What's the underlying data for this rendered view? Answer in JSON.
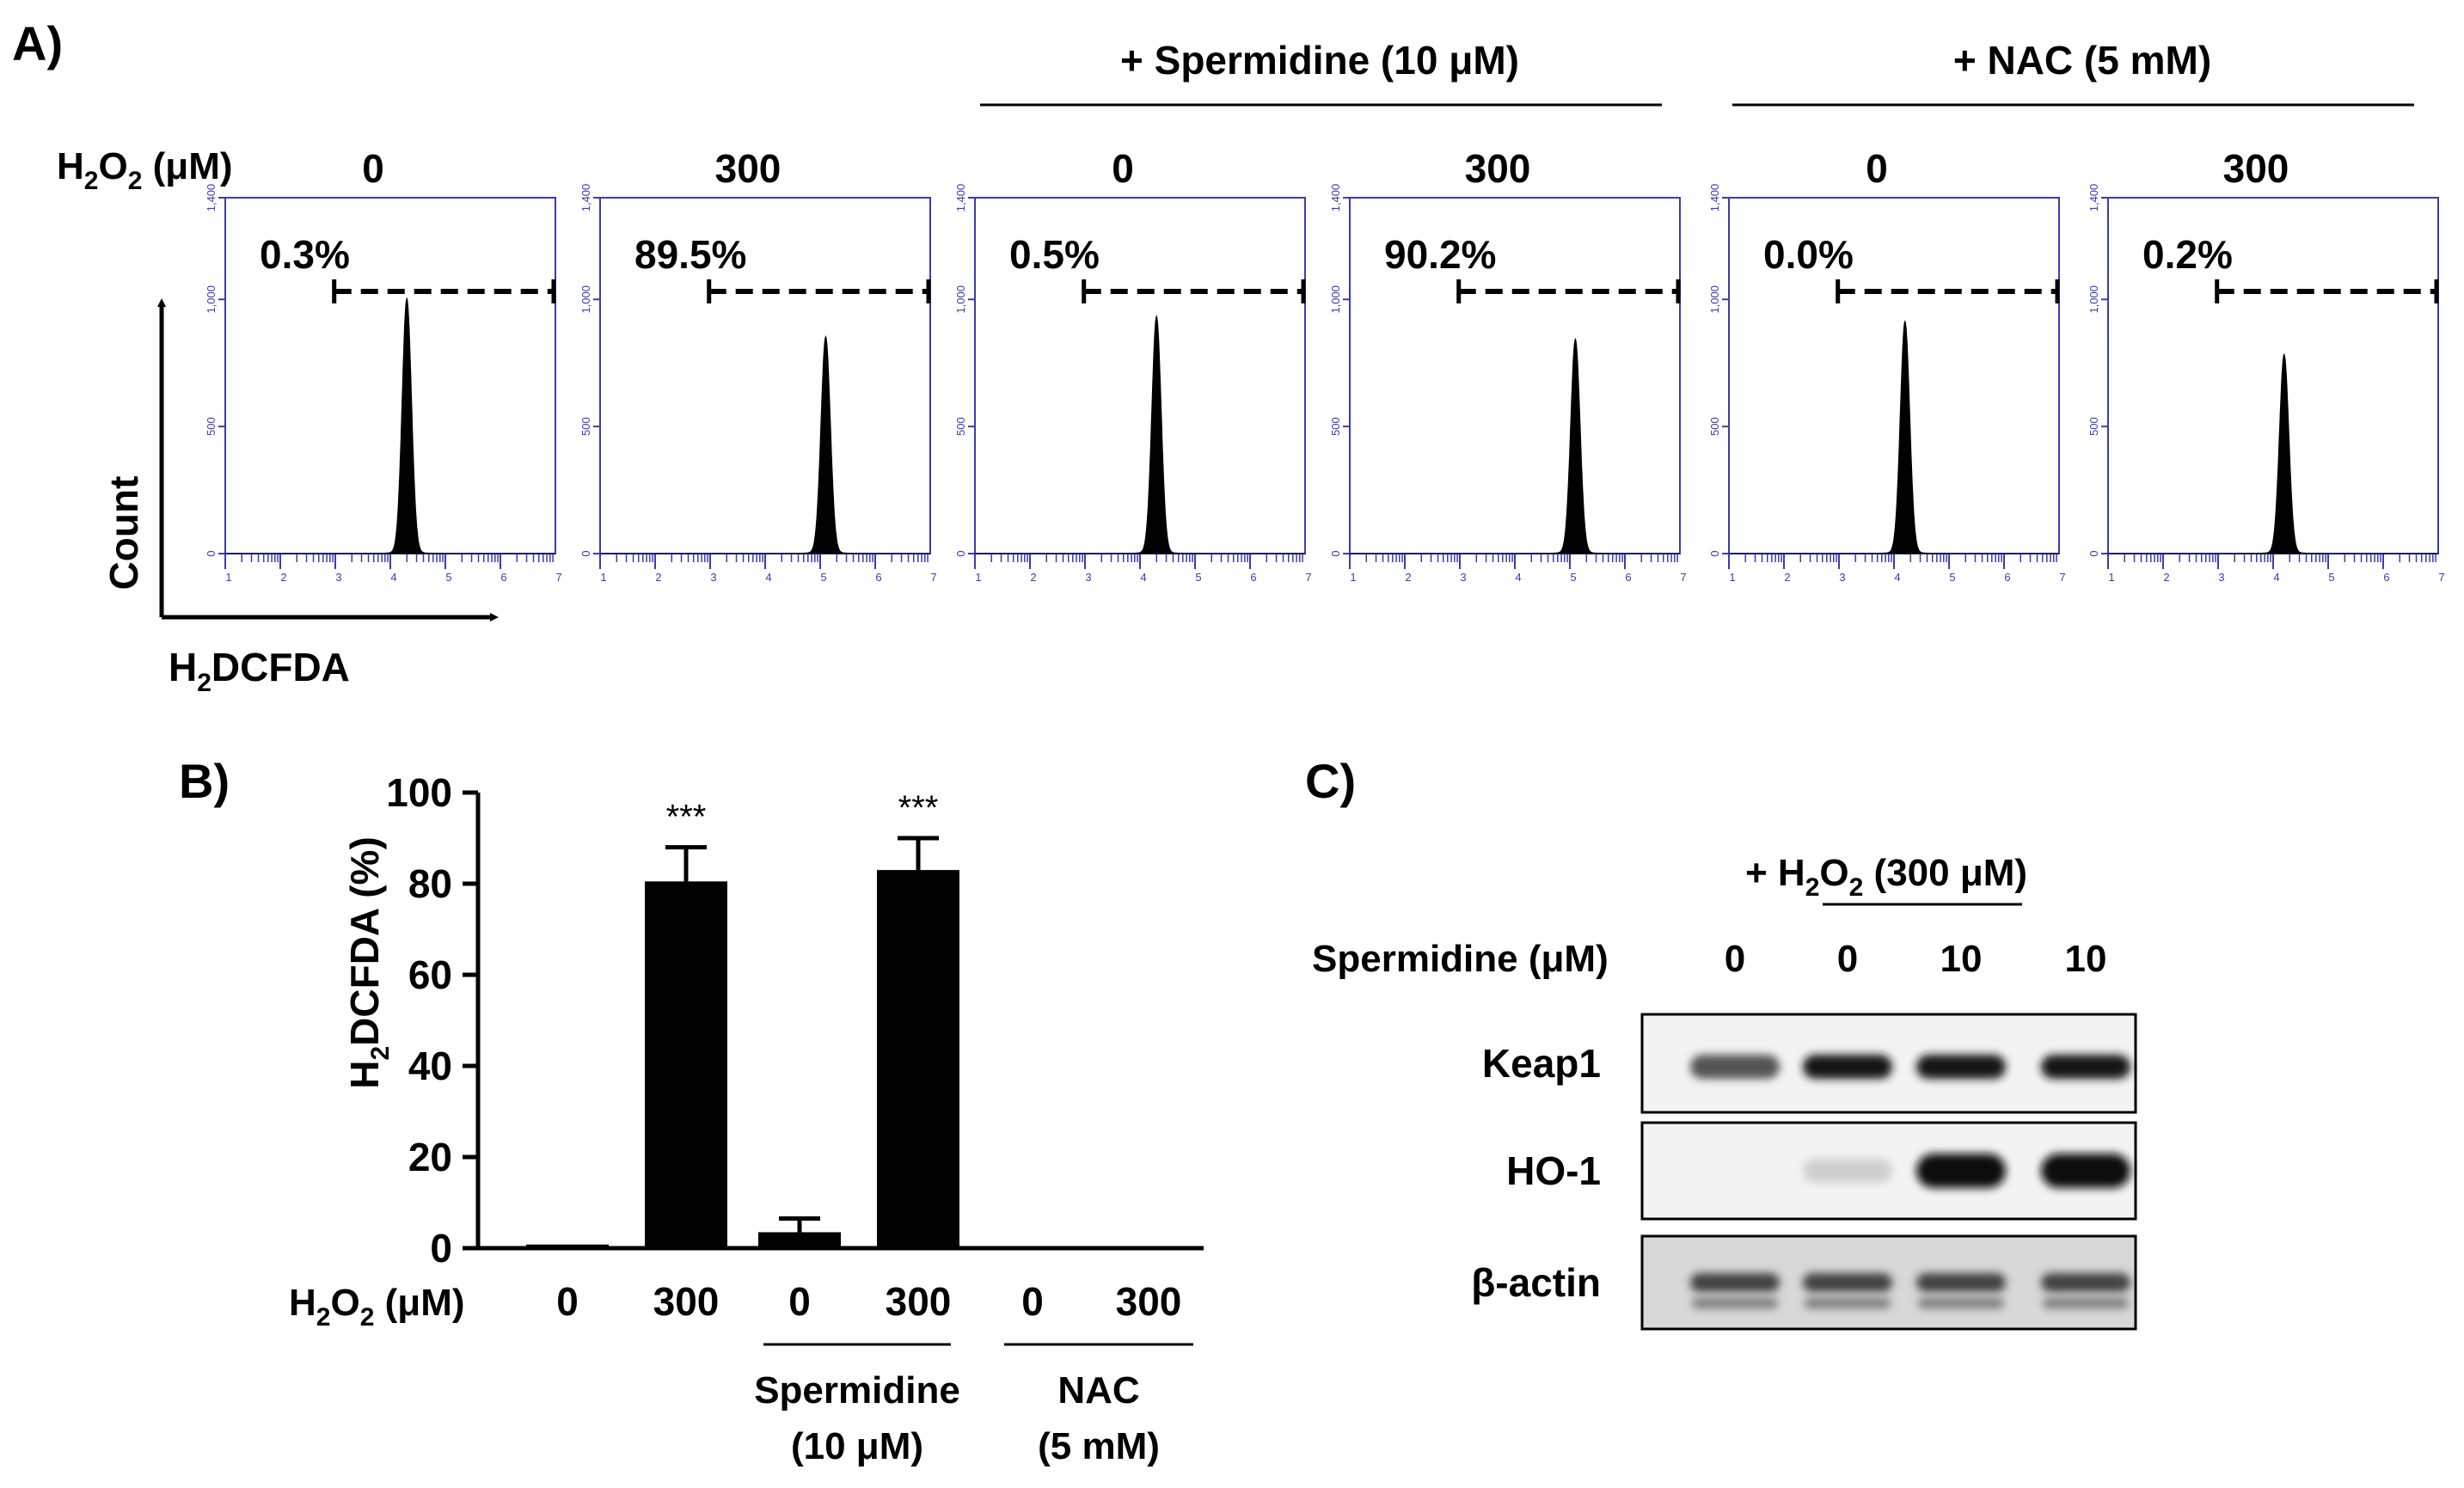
{
  "panel_a": {
    "label": "A)",
    "h2o2_label": "H2O2 (μM)",
    "group_spermidine": "+ Spermidine (10 μM)",
    "group_nac": "+ NAC (5 mM)",
    "y_axis_label": "Count",
    "x_axis_label": "H2DCFDA",
    "y_ticks": [
      "0",
      "500",
      "1,000",
      "1,400"
    ],
    "x_ticks": [
      "1",
      "2",
      "3",
      "4",
      "5",
      "6",
      "7"
    ],
    "histograms": [
      {
        "h2o2": "0",
        "percent": "0.3%",
        "peak_log": 4.3,
        "peak_count": 1000
      },
      {
        "h2o2": "300",
        "percent": "89.5%",
        "peak_log": 5.1,
        "peak_count": 850
      },
      {
        "h2o2": "0",
        "percent": "0.5%",
        "peak_log": 4.3,
        "peak_count": 930
      },
      {
        "h2o2": "300",
        "percent": "90.2%",
        "peak_log": 5.1,
        "peak_count": 840
      },
      {
        "h2o2": "0",
        "percent": "0.0%",
        "peak_log": 4.2,
        "peak_count": 910
      },
      {
        "h2o2": "300",
        "percent": "0.2%",
        "peak_log": 4.2,
        "peak_count": 780
      }
    ]
  },
  "chart_data": {
    "type": "bar",
    "label": "B)",
    "ylabel": "H2DCFDA (%)",
    "xlabel": "H2O2 (μM)",
    "ylim": [
      0,
      100
    ],
    "y_ticks": [
      "0",
      "20",
      "40",
      "60",
      "80",
      "100"
    ],
    "categories": [
      "0",
      "300",
      "0",
      "300",
      "0",
      "300"
    ],
    "values": [
      0.8,
      80.5,
      3.5,
      83.0,
      0.1,
      0.3
    ],
    "errors": [
      0.3,
      7.5,
      3.0,
      7.0,
      0.1,
      0.3
    ],
    "significance": [
      "",
      "***",
      "",
      "***",
      "",
      ""
    ],
    "groups": [
      {
        "line1": "Spermidine",
        "line2": "(10 μM)"
      },
      {
        "line1": "NAC",
        "line2": "(5 mM)"
      }
    ]
  },
  "panel_c": {
    "label": "C)",
    "treatment": "+ H2O2 (300 μM)",
    "spermidine_label": "Spermidine (μM)",
    "lanes": [
      "0",
      "0",
      "10",
      "10"
    ],
    "blots": [
      {
        "name": "Keap1",
        "intensity": [
          0.65,
          0.9,
          0.92,
          0.9
        ]
      },
      {
        "name": "HO-1",
        "intensity": [
          0.0,
          0.12,
          0.95,
          0.95
        ]
      },
      {
        "name": "β-actin",
        "intensity": [
          0.72,
          0.72,
          0.72,
          0.72
        ]
      }
    ]
  }
}
